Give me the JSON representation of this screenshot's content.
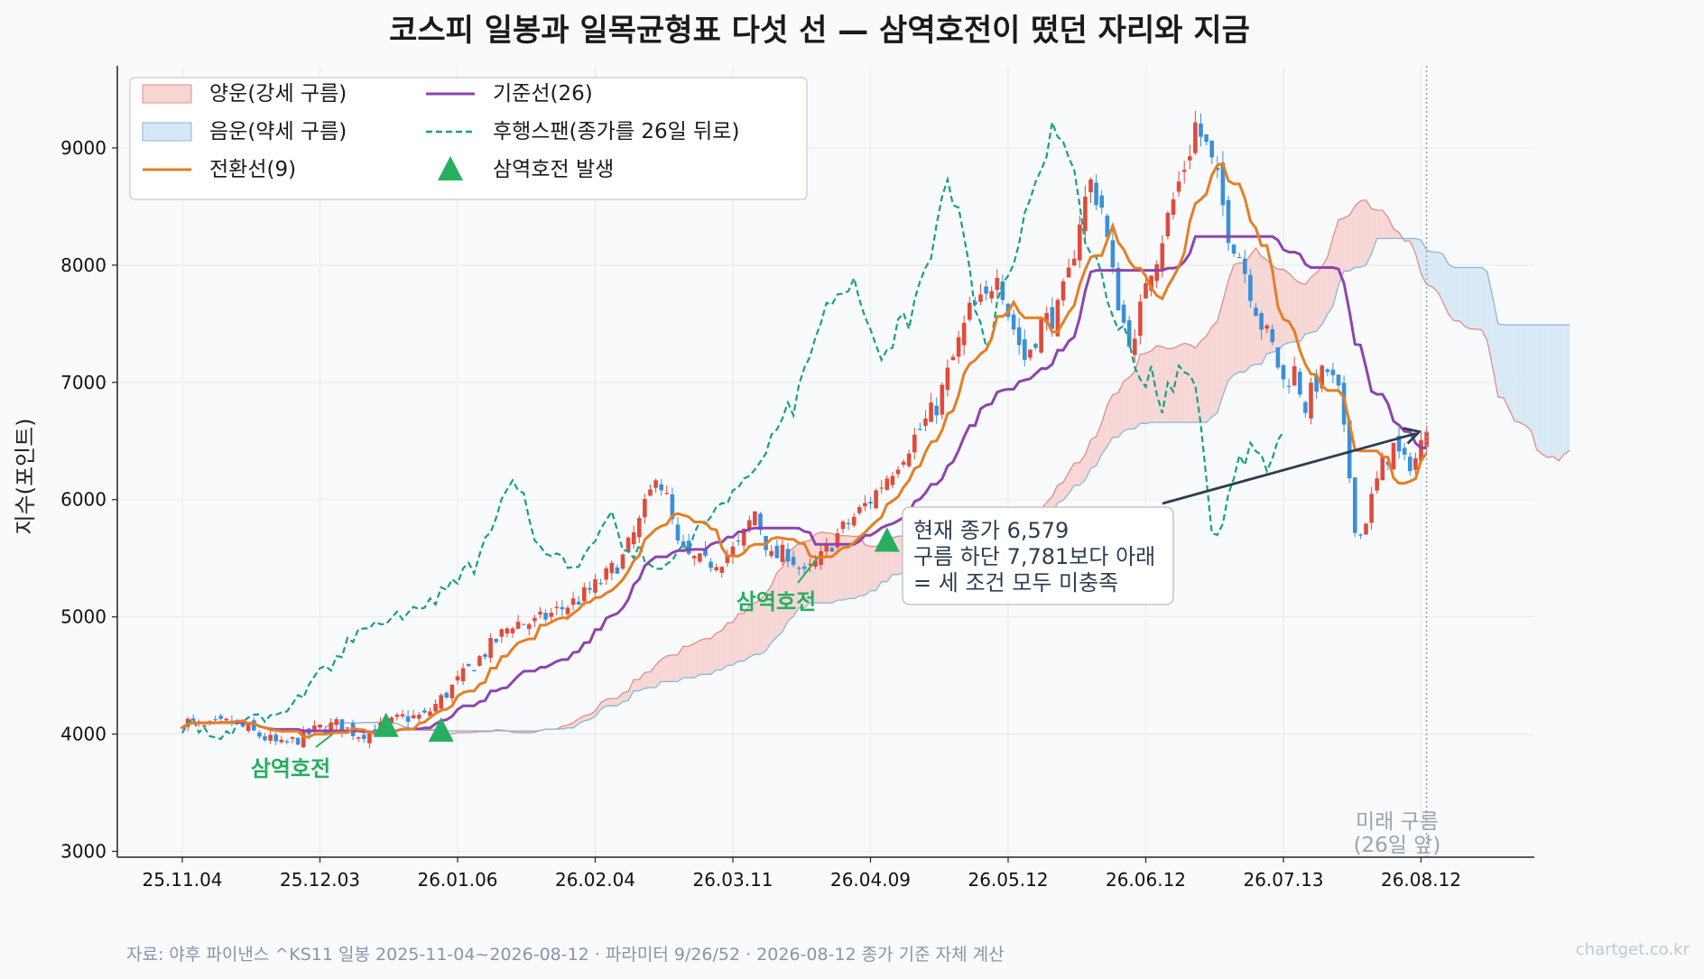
{
  "chart_data": {
    "type": "candlestick",
    "title": "코스피 일봉과 일목균형표 다섯 선 — 삼역호전이 떴던 자리와 지금",
    "ylabel": "지수(포인트)",
    "xlabel": "",
    "ylim": [
      2950,
      9700
    ],
    "yticks": [
      3000,
      4000,
      5000,
      6000,
      7000,
      8000,
      9000
    ],
    "xtick_labels": [
      "25.11.04",
      "25.12.03",
      "26.01.06",
      "26.02.04",
      "26.03.11",
      "26.04.09",
      "26.05.12",
      "26.06.12",
      "26.07.13",
      "26.08.12"
    ],
    "grid": true,
    "legend_position": "top-left",
    "legend": {
      "bull_cloud": "양운(강세 구름)",
      "bear_cloud": "음운(약세 구름)",
      "tenkan": "전환선(9)",
      "kijun": "기준선(26)",
      "chikou": "후행스팬(종가를 26일 뒤로)",
      "signal": "삼역호전 발생"
    },
    "colors": {
      "candle_up": "#e04b3b",
      "candle_down": "#3a8fd9",
      "tenkan": "#e67e22",
      "kijun": "#8e44ad",
      "chikou": "#16a085",
      "bull_cloud_fill": "#f6d5d3",
      "bull_cloud_edge": "#e08d86",
      "bear_cloud_fill": "#d6e8f6",
      "bear_cloud_edge": "#8ab6d9",
      "signal": "#27ae60",
      "annotation": "#2c3e50"
    },
    "close_anchors": [
      [
        0,
        4120
      ],
      [
        4,
        4050
      ],
      [
        9,
        4100
      ],
      [
        14,
        3990
      ],
      [
        18,
        3900
      ],
      [
        22,
        3980
      ],
      [
        25,
        4050
      ],
      [
        28,
        4080
      ],
      [
        32,
        4000
      ],
      [
        36,
        4050
      ],
      [
        40,
        4140
      ],
      [
        44,
        4150
      ],
      [
        48,
        4350
      ],
      [
        52,
        4550
      ],
      [
        56,
        4750
      ],
      [
        60,
        4950
      ],
      [
        64,
        4950
      ],
      [
        68,
        5050
      ],
      [
        72,
        5150
      ],
      [
        76,
        5300
      ],
      [
        80,
        5500
      ],
      [
        83,
        5800
      ],
      [
        85,
        6050
      ],
      [
        86,
        6250
      ],
      [
        88,
        6000
      ],
      [
        90,
        5600
      ],
      [
        92,
        5500
      ],
      [
        95,
        5450
      ],
      [
        98,
        5500
      ],
      [
        101,
        5600
      ],
      [
        104,
        5900
      ],
      [
        107,
        5500
      ],
      [
        110,
        5550
      ],
      [
        113,
        5350
      ],
      [
        116,
        5500
      ],
      [
        119,
        5700
      ],
      [
        122,
        5850
      ],
      [
        125,
        6000
      ],
      [
        128,
        6200
      ],
      [
        131,
        6400
      ],
      [
        134,
        6600
      ],
      [
        137,
        6800
      ],
      [
        140,
        7200
      ],
      [
        143,
        7600
      ],
      [
        146,
        7700
      ],
      [
        148,
        8000
      ],
      [
        150,
        7600
      ],
      [
        153,
        7200
      ],
      [
        156,
        7500
      ],
      [
        159,
        7600
      ],
      [
        161,
        7900
      ],
      [
        163,
        8400
      ],
      [
        165,
        8700
      ],
      [
        167,
        8500
      ],
      [
        169,
        7900
      ],
      [
        171,
        7500
      ],
      [
        173,
        7300
      ],
      [
        175,
        7900
      ],
      [
        177,
        8100
      ],
      [
        179,
        8400
      ],
      [
        181,
        8700
      ],
      [
        183,
        9000
      ],
      [
        184,
        9200
      ],
      [
        186,
        9000
      ],
      [
        188,
        8700
      ],
      [
        190,
        8300
      ],
      [
        192,
        8100
      ],
      [
        194,
        7800
      ],
      [
        196,
        7500
      ],
      [
        198,
        7300
      ],
      [
        200,
        7000
      ],
      [
        202,
        7100
      ],
      [
        204,
        6800
      ],
      [
        206,
        7000
      ],
      [
        208,
        7100
      ],
      [
        210,
        6900
      ],
      [
        212,
        6200
      ],
      [
        213,
        5800
      ],
      [
        214,
        5700
      ],
      [
        216,
        6000
      ],
      [
        218,
        6300
      ],
      [
        220,
        6450
      ],
      [
        222,
        6300
      ],
      [
        224,
        6350
      ],
      [
        226,
        6579
      ]
    ],
    "signals": [
      {
        "day": 37,
        "value": 4060
      },
      {
        "day": 47,
        "value": 4020
      },
      {
        "day": 128,
        "value": 5640
      }
    ],
    "signal_labels": [
      "삼역호전",
      "삼역호전"
    ],
    "current_close_day": 226,
    "current_close": 6579,
    "cloud_lower_now": 7781,
    "annotation_lines": [
      "현재 종가 6,579",
      "구름 하단 7,781보다 아래",
      "= 세 조건 모두 미충족"
    ],
    "future_cloud_label": [
      "미래 구름",
      "(26일 앞)"
    ]
  },
  "footer": {
    "source": "자료: 야후 파이낸스 ^KS11 일봉 2025-11-04~2026-08-12 · 파라미터 9/26/52 · 2026-08-12 종가 기준 자체 계산",
    "watermark": "chartget.co.kr"
  }
}
